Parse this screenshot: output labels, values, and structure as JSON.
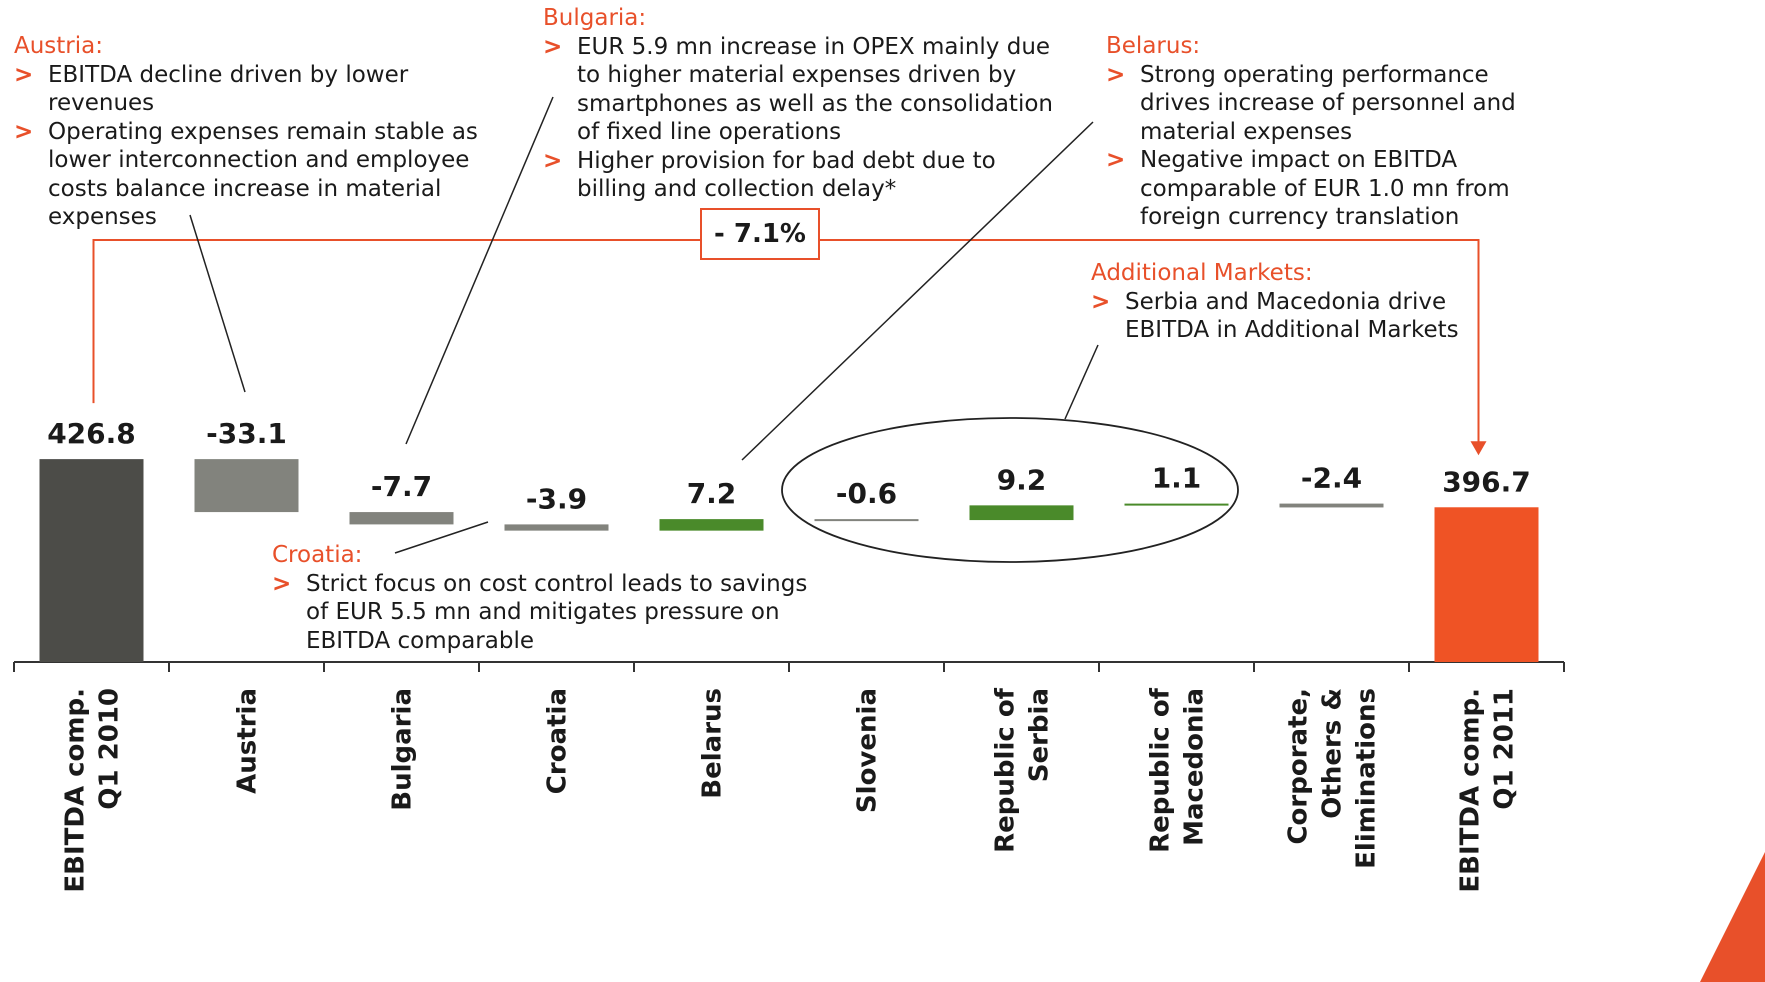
{
  "chart_data": {
    "type": "bar",
    "subtype": "waterfall",
    "categories": [
      [
        "EBITDA comp.",
        "Q1 2010"
      ],
      [
        "Austria"
      ],
      [
        "Bulgaria"
      ],
      [
        "Croatia"
      ],
      [
        "Belarus"
      ],
      [
        "Slovenia"
      ],
      [
        "Republic of",
        "Serbia"
      ],
      [
        "Republic of",
        "Macedonia"
      ],
      [
        "Corporate,",
        "Others &",
        "Eliminations"
      ],
      [
        "EBITDA comp.",
        "Q1 2011"
      ]
    ],
    "values": [
      426.8,
      -33.1,
      -7.7,
      -3.9,
      7.2,
      -0.6,
      9.2,
      1.1,
      -2.4,
      396.7
    ],
    "value_labels": [
      "426.8",
      "-33.1",
      "-7.7",
      "-3.9",
      "7.2",
      "-0.6",
      "9.2",
      "1.1",
      "-2.4",
      "396.7"
    ],
    "bar_kinds": [
      "total",
      "negative",
      "negative",
      "negative",
      "positive",
      "negative",
      "positive",
      "positive",
      "negative",
      "total-final"
    ],
    "change_label": "- 7.1%",
    "grid": false,
    "legend": "none"
  },
  "colors": {
    "total": "#4c4c48",
    "negative": "#82837d",
    "positive": "#4a8a2a",
    "final": "#ef5325",
    "accent": "#e8502a"
  },
  "annotations": {
    "austria": {
      "heading": "Austria:",
      "bullets": [
        "EBITDA decline driven by lower revenues",
        "Operating expenses remain stable as lower interconnection and employee costs balance increase in material expenses"
      ]
    },
    "bulgaria": {
      "heading": "Bulgaria:",
      "bullets": [
        "EUR 5.9 mn increase in OPEX mainly due to higher material expenses driven by smartphones as well as the consolidation of fixed line operations",
        "Higher provision for bad debt due to billing and collection delay*"
      ]
    },
    "belarus": {
      "heading": "Belarus:",
      "bullets": [
        "Strong operating performance drives increase of personnel and material expenses",
        "Negative impact on EBITDA comparable of EUR 1.0 mn from foreign currency translation"
      ]
    },
    "additional": {
      "heading": "Additional Markets:",
      "bullets": [
        "Serbia and Macedonia drive EBITDA in Additional Markets"
      ]
    },
    "croatia": {
      "heading": "Croatia:",
      "bullets": [
        "Strict focus on cost control leads to savings of EUR 5.5 mn and mitigates pressure on EBITDA comparable"
      ]
    }
  }
}
